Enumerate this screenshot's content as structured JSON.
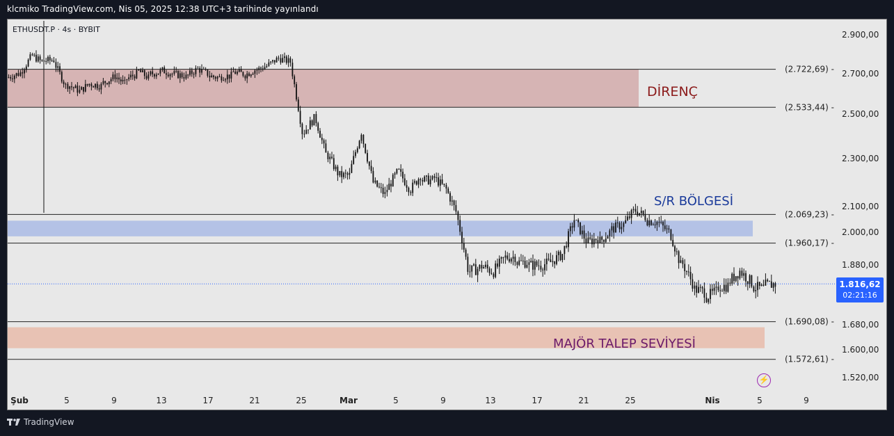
{
  "header": {
    "published": "klcmiko TradingView.com, Nis 05, 2025 12:38 UTC+3 tarihinde yayınlandı"
  },
  "symbol_line": "ETHUSDT.P · 4s · BYBIT",
  "footer": {
    "brand": "TradingView"
  },
  "last_price": {
    "value": "1.816,62",
    "countdown": "02:21:16"
  },
  "colors": {
    "resistance_zone": "#d6b4b4",
    "sr_zone": "#b4c2e6",
    "demand_zone": "#e8c2b4",
    "resistance_text": "#8b1a1a",
    "sr_text": "#1a3a9a",
    "demand_text": "#6a1a6a",
    "price_badge": "#2962ff"
  },
  "chart_data": {
    "type": "candlestick",
    "timeframe": "4s",
    "x_tick_labels": [
      "Şub",
      "5",
      "9",
      "13",
      "17",
      "21",
      "25",
      "Mar",
      "5",
      "9",
      "13",
      "17",
      "21",
      "25",
      "Nis",
      "5",
      "9"
    ],
    "y_tick_labels": [
      "2.900,00",
      "2.700,00",
      "2.500,00",
      "2.300,00",
      "2.100,00",
      "2.000,00",
      "1.880,00",
      "1.680,00",
      "1.600,00",
      "1.520,00"
    ],
    "y_ticks": [
      2900,
      2700,
      2500,
      2300,
      2100,
      2000,
      1880,
      1680,
      1600,
      1520
    ],
    "levels": [
      {
        "value": 2722.69,
        "label": "(2.722,69)"
      },
      {
        "value": 2533.44,
        "label": "(2.533,44)"
      },
      {
        "value": 2069.23,
        "label": "(2.069,23)"
      },
      {
        "value": 1960.17,
        "label": "(1.960,17)"
      },
      {
        "value": 1690.08,
        "label": "(1.690,08)"
      },
      {
        "value": 1572.61,
        "label": "(1.572,61)"
      }
    ],
    "zones": [
      {
        "label": "DİRENÇ",
        "from": 2533.44,
        "to": 2722.69
      },
      {
        "label": "S/R BÖLGESİ",
        "from": 1985,
        "to": 2045
      },
      {
        "label": "MAJÖR TALEP SEVİYESİ",
        "from": 1605,
        "to": 1672
      }
    ],
    "last_price": 1816.62,
    "price_path_day_close": [
      [
        1,
        2700
      ],
      [
        2,
        2780
      ],
      [
        3,
        2760
      ],
      [
        4,
        2770
      ],
      [
        5,
        2640
      ],
      [
        6,
        2620
      ],
      [
        7,
        2650
      ],
      [
        8,
        2640
      ],
      [
        9,
        2680
      ],
      [
        10,
        2650
      ],
      [
        11,
        2700
      ],
      [
        12,
        2680
      ],
      [
        13,
        2710
      ],
      [
        14,
        2700
      ],
      [
        15,
        2690
      ],
      [
        16,
        2720
      ],
      [
        17,
        2700
      ],
      [
        18,
        2680
      ],
      [
        19,
        2690
      ],
      [
        20,
        2700
      ],
      [
        21,
        2720
      ],
      [
        22,
        2740
      ],
      [
        23,
        2780
      ],
      [
        24,
        2760
      ],
      [
        25,
        2420
      ],
      [
        26,
        2480
      ],
      [
        27,
        2320
      ],
      [
        28,
        2240
      ],
      [
        29,
        2230
      ],
      [
        30,
        2420
      ],
      [
        31,
        2200
      ],
      [
        32,
        2150
      ],
      [
        33,
        2240
      ],
      [
        34,
        2180
      ],
      [
        35,
        2230
      ],
      [
        36,
        2210
      ],
      [
        37,
        2180
      ],
      [
        38,
        2080
      ],
      [
        39,
        1870
      ],
      [
        40,
        1870
      ],
      [
        41,
        1860
      ],
      [
        42,
        1900
      ],
      [
        43,
        1910
      ],
      [
        44,
        1890
      ],
      [
        45,
        1880
      ],
      [
        46,
        1890
      ],
      [
        47,
        1920
      ],
      [
        48,
        2050
      ],
      [
        49,
        1970
      ],
      [
        50,
        1980
      ],
      [
        51,
        2000
      ],
      [
        52,
        2030
      ],
      [
        53,
        2080
      ],
      [
        54,
        2060
      ],
      [
        55,
        2040
      ],
      [
        56,
        2000
      ],
      [
        57,
        1880
      ],
      [
        58,
        1820
      ],
      [
        59,
        1790
      ],
      [
        60,
        1790
      ],
      [
        61,
        1810
      ],
      [
        62,
        1860
      ],
      [
        63,
        1820
      ],
      [
        64,
        1800
      ],
      [
        65,
        1816.62
      ]
    ],
    "y_axis_position": "right",
    "grid": false
  }
}
